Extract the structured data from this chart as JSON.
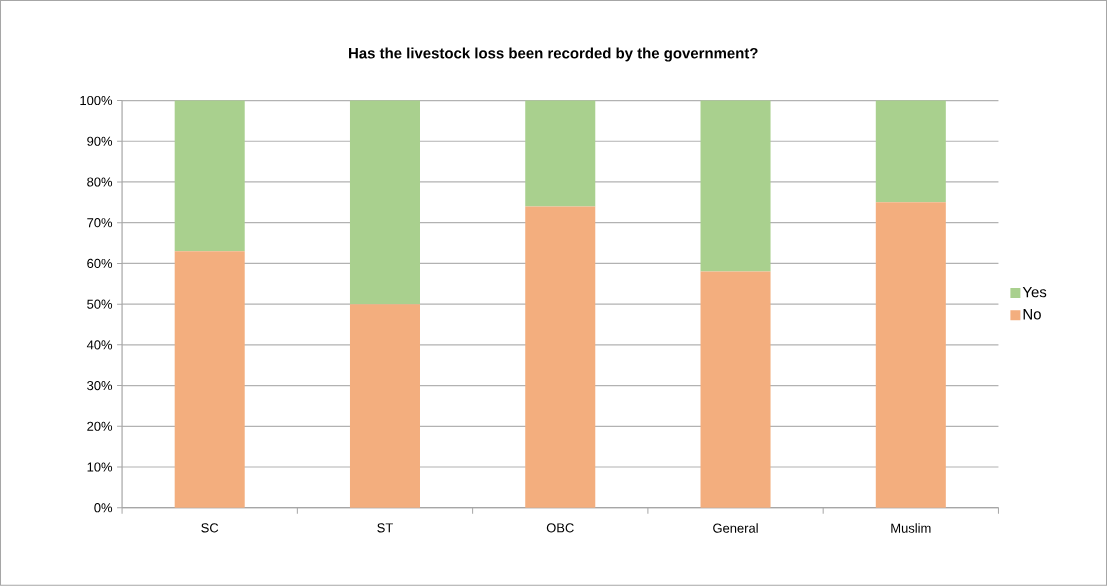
{
  "chart_data": {
    "type": "bar",
    "stacked": true,
    "title": "Has the livestock loss been recorded by the government?",
    "categories": [
      "SC",
      "ST",
      "OBC",
      "General",
      "Muslim"
    ],
    "series": [
      {
        "name": "No",
        "color": "#f3ae7e",
        "values": [
          63,
          50,
          74,
          58,
          75
        ]
      },
      {
        "name": "Yes",
        "color": "#a9d08e",
        "values": [
          37,
          50,
          26,
          42,
          25
        ]
      }
    ],
    "ylim": [
      0,
      100
    ],
    "yticks": [
      {
        "value": 0,
        "label": "0%"
      },
      {
        "value": 10,
        "label": "10%"
      },
      {
        "value": 20,
        "label": "20%"
      },
      {
        "value": 30,
        "label": "30%"
      },
      {
        "value": 40,
        "label": "40%"
      },
      {
        "value": 50,
        "label": "50%"
      },
      {
        "value": 60,
        "label": "60%"
      },
      {
        "value": 70,
        "label": "70%"
      },
      {
        "value": 80,
        "label": "80%"
      },
      {
        "value": 90,
        "label": "90%"
      },
      {
        "value": 100,
        "label": "100%"
      }
    ],
    "grid": "y",
    "legend": "right"
  }
}
